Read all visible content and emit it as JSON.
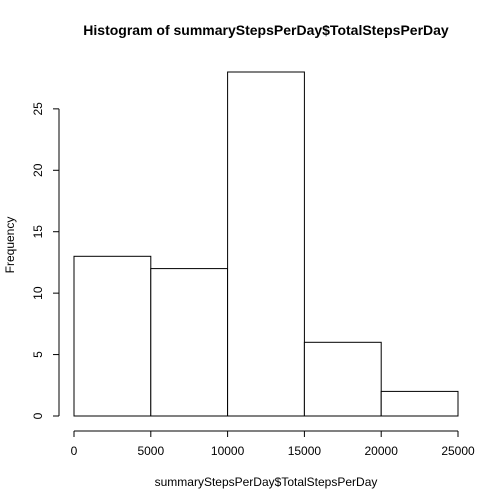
{
  "chart_data": {
    "type": "bar",
    "title": "Histogram of summaryStepsPerDay$TotalStepsPerDay",
    "xlabel": "summaryStepsPerDay$TotalStepsPerDay",
    "ylabel": "Frequency",
    "bins": [
      {
        "start": 0,
        "end": 5000,
        "value": 13
      },
      {
        "start": 5000,
        "end": 10000,
        "value": 12
      },
      {
        "start": 10000,
        "end": 15000,
        "value": 28
      },
      {
        "start": 15000,
        "end": 20000,
        "value": 6
      },
      {
        "start": 20000,
        "end": 25000,
        "value": 2
      }
    ],
    "xlim": [
      0,
      25000
    ],
    "ylim": [
      0,
      28
    ],
    "x_ticks": [
      0,
      5000,
      10000,
      15000,
      20000,
      25000
    ],
    "y_ticks": [
      0,
      5,
      10,
      15,
      20,
      25
    ],
    "grid": false,
    "legend": "none"
  }
}
